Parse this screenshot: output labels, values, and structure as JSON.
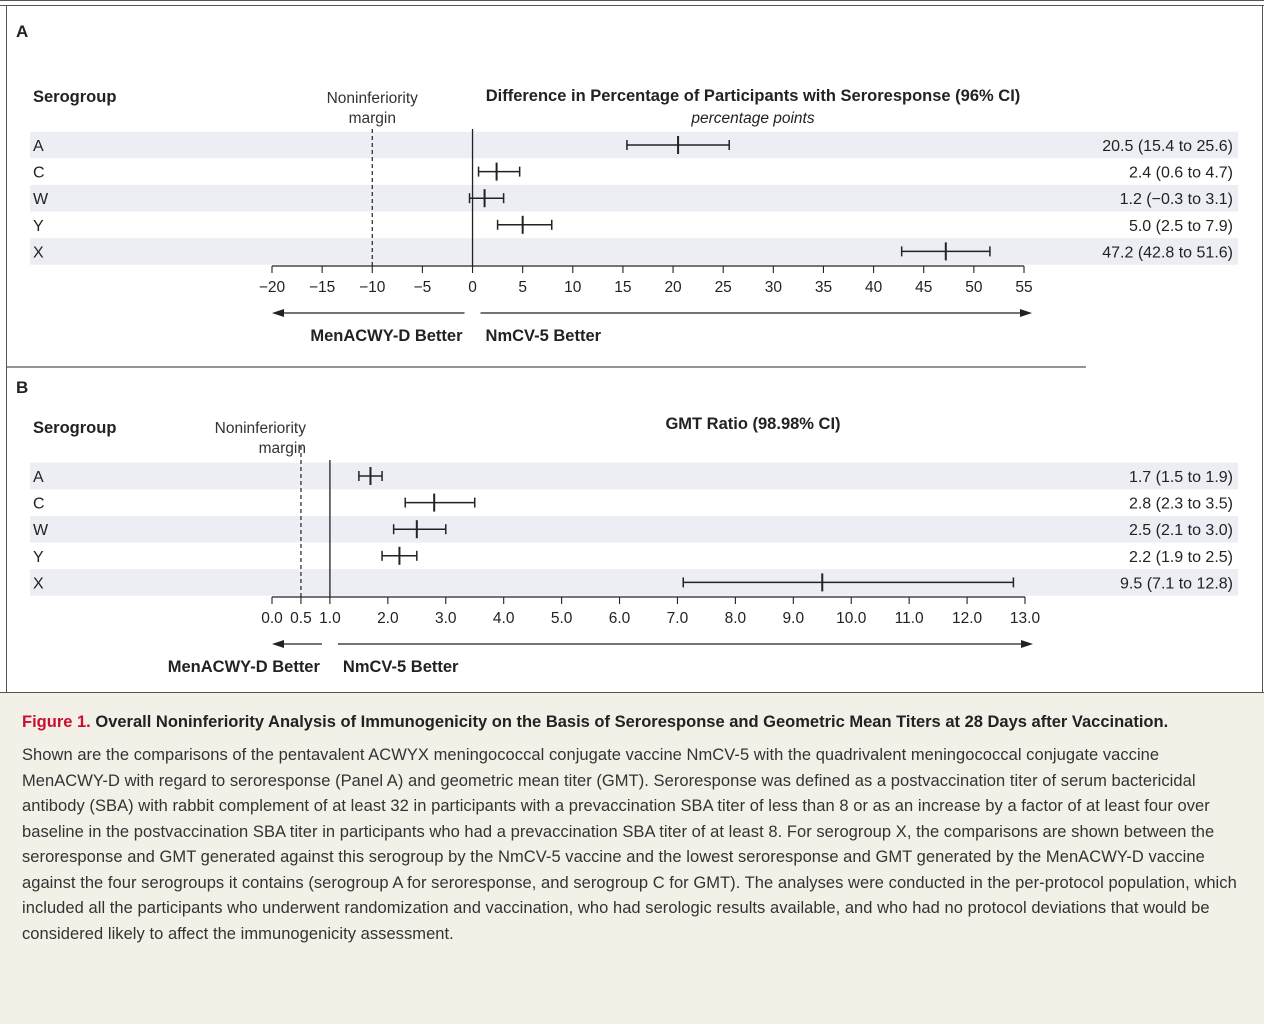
{
  "chart_data": [
    {
      "type": "forest",
      "panel_label": "A",
      "row_header": "Serogroup",
      "title": "Difference in Percentage of Participants with Seroresponse (96% CI)",
      "subtitle": "percentage points",
      "reference_label": "Noninferiority margin",
      "reference_value": -10,
      "null_value": 0,
      "xlim": [
        -20,
        55
      ],
      "ticks": [
        -20,
        -15,
        -10,
        -5,
        0,
        5,
        10,
        15,
        20,
        25,
        30,
        35,
        40,
        45,
        50,
        55
      ],
      "tick_labels": [
        "−20",
        "−15",
        "−10",
        "−5",
        "0",
        "5",
        "10",
        "15",
        "20",
        "25",
        "30",
        "35",
        "40",
        "45",
        "50",
        "55"
      ],
      "left_favors": "MenACWY-D Better",
      "right_favors": "NmCV-5 Better",
      "rows": [
        {
          "group": "A",
          "estimate": 20.5,
          "lower": 15.4,
          "upper": 25.6,
          "label": "20.5 (15.4 to 25.6)"
        },
        {
          "group": "C",
          "estimate": 2.4,
          "lower": 0.6,
          "upper": 4.7,
          "label": "2.4 (0.6 to 4.7)"
        },
        {
          "group": "W",
          "estimate": 1.2,
          "lower": -0.3,
          "upper": 3.1,
          "label": "1.2 (−0.3 to 3.1)"
        },
        {
          "group": "Y",
          "estimate": 5.0,
          "lower": 2.5,
          "upper": 7.9,
          "label": "5.0 (2.5 to 7.9)"
        },
        {
          "group": "X",
          "estimate": 47.2,
          "lower": 42.8,
          "upper": 51.6,
          "label": "47.2 (42.8 to 51.6)"
        }
      ]
    },
    {
      "type": "forest",
      "panel_label": "B",
      "row_header": "Serogroup",
      "title": "GMT Ratio (98.98% CI)",
      "subtitle": "",
      "reference_label": "Noninferiority margin",
      "reference_value": 0.5,
      "null_value": 1.0,
      "xlim": [
        0,
        13
      ],
      "ticks": [
        0,
        0.5,
        1,
        2,
        3,
        4,
        5,
        6,
        7,
        8,
        9,
        10,
        11,
        12,
        13
      ],
      "tick_labels": [
        "0.0",
        "0.5",
        "1.0",
        "2.0",
        "3.0",
        "4.0",
        "5.0",
        "6.0",
        "7.0",
        "8.0",
        "9.0",
        "10.0",
        "11.0",
        "12.0",
        "13.0"
      ],
      "left_favors": "MenACWY-D Better",
      "right_favors": "NmCV-5 Better",
      "rows": [
        {
          "group": "A",
          "estimate": 1.7,
          "lower": 1.5,
          "upper": 1.9,
          "label": "1.7 (1.5 to 1.9)"
        },
        {
          "group": "C",
          "estimate": 2.8,
          "lower": 2.3,
          "upper": 3.5,
          "label": "2.8 (2.3 to 3.5)"
        },
        {
          "group": "W",
          "estimate": 2.5,
          "lower": 2.1,
          "upper": 3.0,
          "label": "2.5 (2.1 to 3.0)"
        },
        {
          "group": "Y",
          "estimate": 2.2,
          "lower": 1.9,
          "upper": 2.5,
          "label": "2.2 (1.9 to 2.5)"
        },
        {
          "group": "X",
          "estimate": 9.5,
          "lower": 7.1,
          "upper": 12.8,
          "label": "9.5 (7.1 to 12.8)"
        }
      ]
    }
  ],
  "caption": {
    "label": "Figure 1.",
    "title": "Overall Noninferiority Analysis of Immunogenicity on the Basis of Seroresponse and Geometric Mean Titers at 28 Days after Vaccination.",
    "body": "Shown are the comparisons of the pentavalent ACWYX meningococcal conjugate vaccine NmCV-5 with the quadrivalent meningococcal conjugate vaccine MenACWY-D with regard to seroresponse (Panel A) and geometric mean titer (GMT). Seroresponse was defined as a postvaccination titer of serum bactericidal antibody (SBA) with rabbit complement of at least 32 in participants with a prevaccination SBA titer of less than 8 or as an increase by a factor of at least four over baseline in the postvaccination SBA titer in participants who had a prevaccination SBA titer of at least 8. For serogroup X, the comparisons are shown between the seroresponse and GMT generated against this serogroup by the NmCV-5 vaccine and the lowest seroresponse and GMT generated by the MenACWY-D vaccine against the four serogroups it contains (serogroup A for seroresponse, and serogroup C for GMT). The analyses were conducted in the per-protocol population, which included all the participants who underwent randomization and vaccination, who had serologic results available, and who had no protocol deviations that would be considered likely to affect the immunogenicity assessment."
  }
}
